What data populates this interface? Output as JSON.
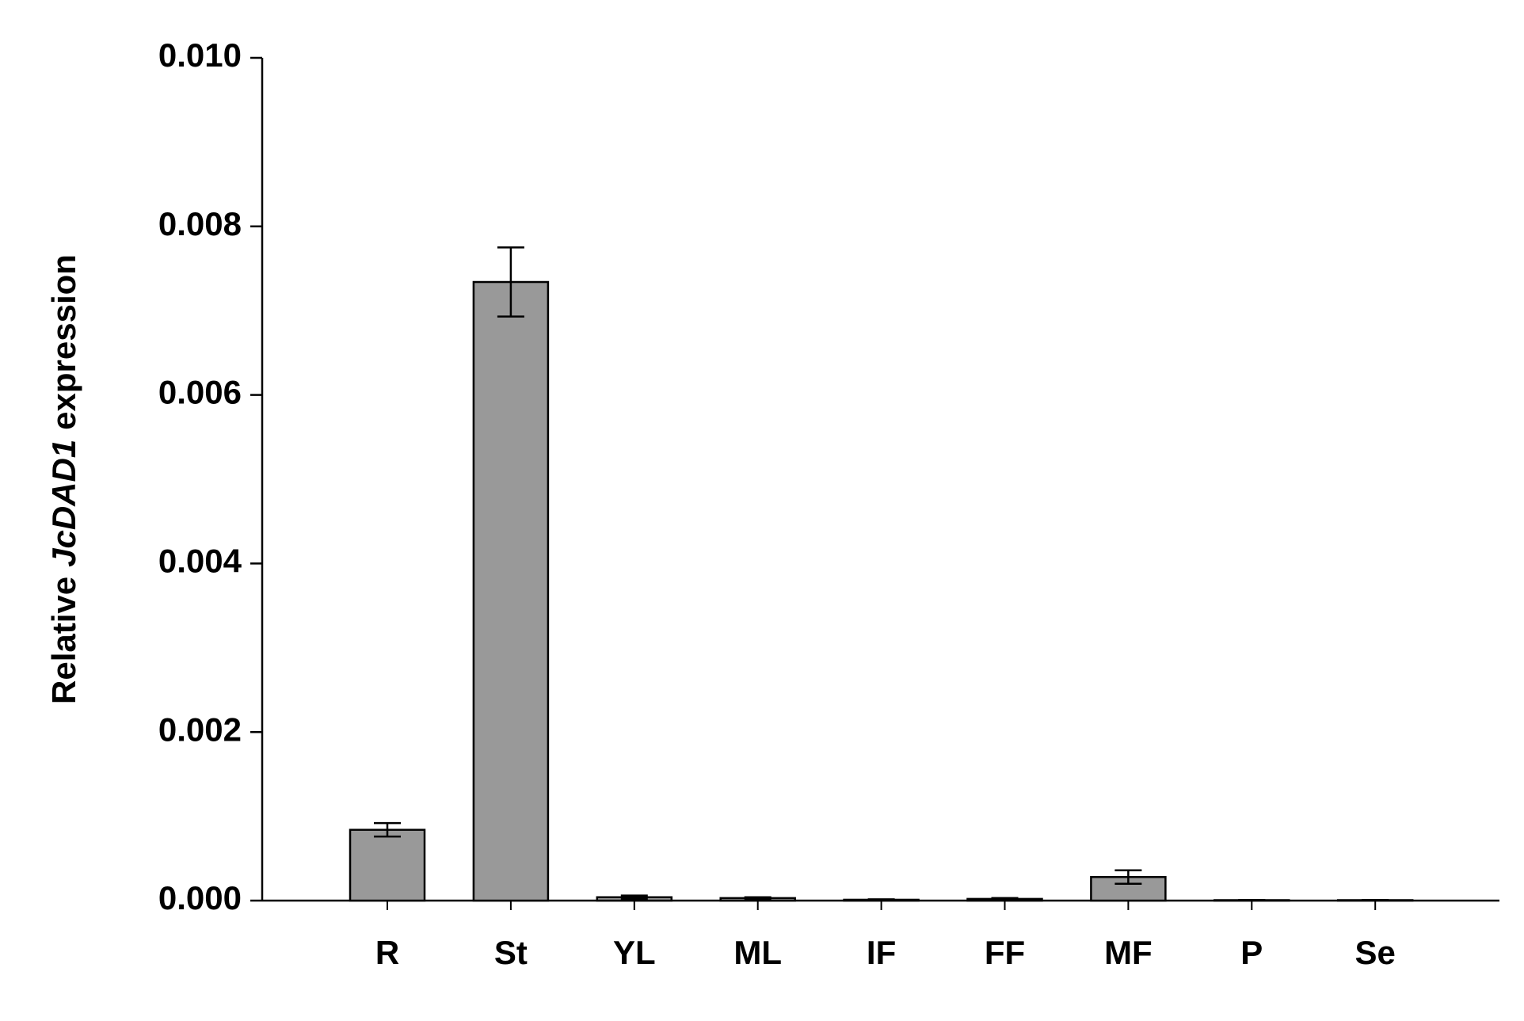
{
  "chart_data": {
    "type": "bar",
    "y_label": {
      "before": "Relative",
      "italic": "JcDAD1",
      "after": "expression"
    },
    "categories": [
      "R",
      "St",
      "YL",
      "ML",
      "IF",
      "FF",
      "MF",
      "P",
      "Se"
    ],
    "values": [
      0.00084,
      0.00734,
      4e-05,
      3e-05,
      1e-05,
      2e-05,
      0.00028,
      5e-06,
      5e-06
    ],
    "errors": [
      8e-05,
      0.00041,
      2e-05,
      1e-05,
      5e-06,
      1e-05,
      8e-05,
      2e-06,
      2e-06
    ],
    "color": "#999999",
    "ylim": [
      0,
      0.01
    ],
    "yticks": [
      {
        "value": 0,
        "label": "0.000"
      },
      {
        "value": 0.002,
        "label": "0.002"
      },
      {
        "value": 0.004,
        "label": "0.004"
      },
      {
        "value": 0.006,
        "label": "0.006"
      },
      {
        "value": 0.008,
        "label": "0.008"
      },
      {
        "value": 0.01,
        "label": "0.010"
      }
    ],
    "grid": false
  }
}
